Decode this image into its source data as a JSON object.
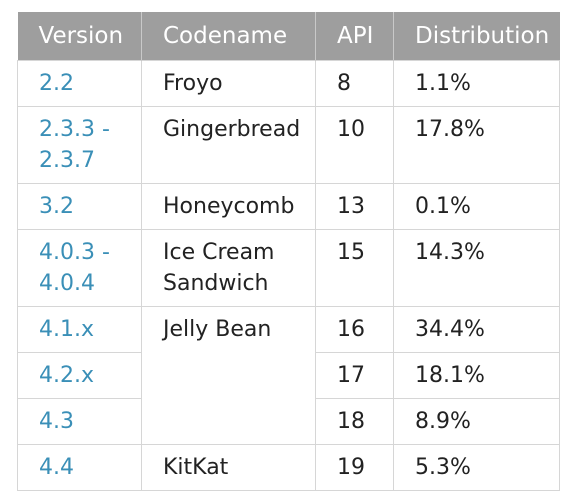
{
  "header": {
    "version": "Version",
    "codename": "Codename",
    "api": "API",
    "distribution": "Distribution"
  },
  "rows": [
    {
      "version": "2.2",
      "codename": "Froyo",
      "api": "8",
      "distribution": "1.1%"
    },
    {
      "version": "2.3.3 -\n2.3.7",
      "codename": "Gingerbread",
      "api": "10",
      "distribution": "17.8%"
    },
    {
      "version": "3.2",
      "codename": "Honeycomb",
      "api": "13",
      "distribution": "0.1%"
    },
    {
      "version": "4.0.3 -\n4.0.4",
      "codename": "Ice Cream\nSandwich",
      "api": "15",
      "distribution": "14.3%"
    },
    {
      "version": "4.1.x",
      "codename": "Jelly Bean",
      "api": "16",
      "distribution": "34.4%"
    },
    {
      "version": "4.2.x",
      "codename": "",
      "api": "17",
      "distribution": "18.1%"
    },
    {
      "version": "4.3",
      "codename": "",
      "api": "18",
      "distribution": "8.9%"
    },
    {
      "version": "4.4",
      "codename": "KitKat",
      "api": "19",
      "distribution": "5.3%"
    }
  ],
  "colors": {
    "header_bg": "#9e9e9e",
    "header_text": "#ffffff",
    "link": "#3a8fb7",
    "border": "#d6d6d6",
    "text": "#222222"
  }
}
